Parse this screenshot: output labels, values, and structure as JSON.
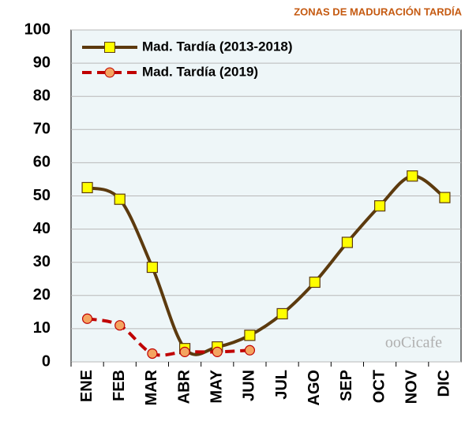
{
  "chart_data": {
    "type": "line",
    "title": "ZONAS DE MADURACIÓN TARDÍA",
    "categories": [
      "ENE",
      "FEB",
      "MAR",
      "ABR",
      "MAY",
      "JUN",
      "JUL",
      "AGO",
      "SEP",
      "OCT",
      "NOV",
      "DIC"
    ],
    "series": [
      {
        "name": "Mad. Tardía (2013-2018)",
        "color": "#5c3a0e",
        "marker_color": "#ffff00",
        "marker": "square",
        "dashed": false,
        "values": [
          52.5,
          49,
          28.5,
          4,
          4.5,
          8,
          14.5,
          24,
          36,
          47,
          56,
          49.5
        ]
      },
      {
        "name": "Mad. Tardía (2019)",
        "color": "#c00000",
        "marker_color": "#f4a460",
        "marker": "circle",
        "dashed": true,
        "values": [
          13,
          11,
          2.5,
          3,
          3,
          3.5,
          null,
          null,
          null,
          null,
          null,
          null
        ]
      }
    ],
    "ylim": [
      0,
      100
    ],
    "yticks": [
      0,
      10,
      20,
      30,
      40,
      50,
      60,
      70,
      80,
      90,
      100
    ],
    "grid": true,
    "legend": "top-left",
    "watermark": "ooCicafe"
  }
}
